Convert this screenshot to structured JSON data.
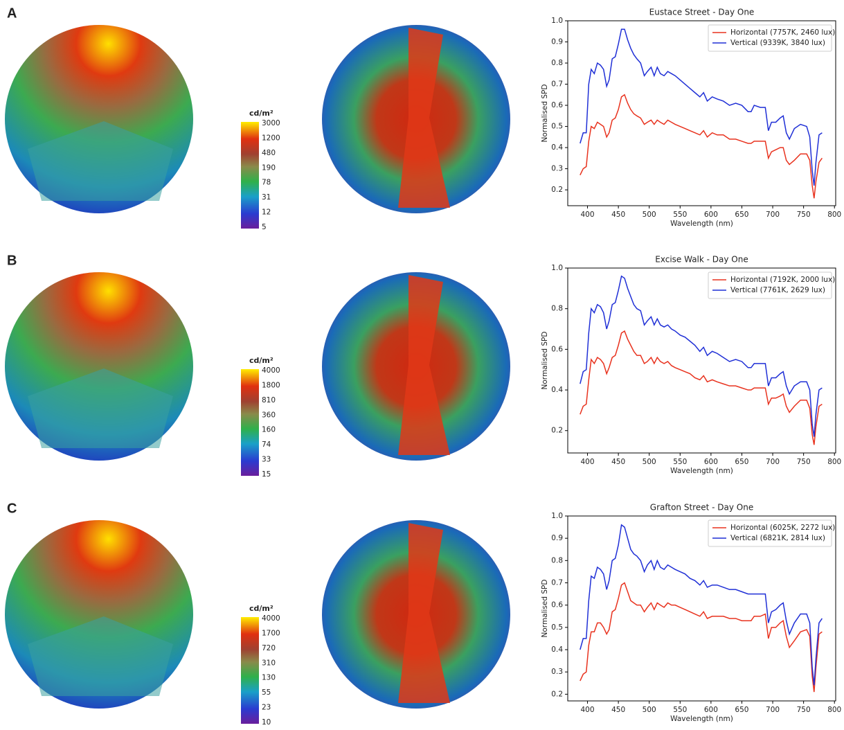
{
  "panels": [
    {
      "label": "A",
      "colorbar": {
        "unit": "cd/m²",
        "ticks": [
          3000,
          1200,
          480,
          190,
          78,
          31,
          12,
          5
        ]
      }
    },
    {
      "label": "B",
      "colorbar": {
        "unit": "cd/m²",
        "ticks": [
          4000,
          1800,
          810,
          360,
          160,
          74,
          33,
          15
        ]
      }
    },
    {
      "label": "C",
      "colorbar": {
        "unit": "cd/m²",
        "ticks": [
          4000,
          1700,
          720,
          310,
          130,
          55,
          23,
          10
        ]
      }
    }
  ],
  "chart_data": [
    {
      "type": "line",
      "title": "Eustace Street - Day One",
      "x_label": "Wavelength (nm)",
      "y_label": "Normalised SPD",
      "x": [
        388,
        393,
        398,
        402,
        406,
        411,
        416,
        421,
        426,
        431,
        435,
        440,
        445,
        450,
        455,
        460,
        465,
        470,
        475,
        480,
        486,
        492,
        497,
        503,
        508,
        513,
        518,
        524,
        530,
        536,
        542,
        550,
        558,
        566,
        574,
        582,
        588,
        594,
        602,
        610,
        620,
        630,
        640,
        650,
        660,
        665,
        670,
        680,
        688,
        693,
        698,
        705,
        712,
        717,
        722,
        727,
        735,
        745,
        755,
        760,
        764,
        767,
        770,
        775,
        780
      ],
      "xlim": [
        368,
        802
      ],
      "xticks": [
        400,
        450,
        500,
        550,
        600,
        650,
        700,
        750,
        800
      ],
      "ylim": [
        0.125,
        1.0
      ],
      "yticks": [
        0.2,
        0.3,
        0.4,
        0.5,
        0.6,
        0.7,
        0.8,
        0.9,
        {
          "value": 1,
          "label": "1.0"
        }
      ],
      "legend": "upper right",
      "series": [
        {
          "name": "Horizontal (7757K, 2460 lux)",
          "color": "#e8321e",
          "values": [
            0.27,
            0.3,
            0.31,
            0.43,
            0.5,
            0.49,
            0.52,
            0.51,
            0.5,
            0.45,
            0.47,
            0.53,
            0.54,
            0.58,
            0.64,
            0.65,
            0.61,
            0.58,
            0.56,
            0.55,
            0.54,
            0.51,
            0.52,
            0.53,
            0.51,
            0.53,
            0.52,
            0.51,
            0.53,
            0.52,
            0.51,
            0.5,
            0.49,
            0.48,
            0.47,
            0.46,
            0.48,
            0.45,
            0.47,
            0.46,
            0.46,
            0.44,
            0.44,
            0.43,
            0.42,
            0.42,
            0.43,
            0.43,
            0.43,
            0.35,
            0.38,
            0.39,
            0.4,
            0.4,
            0.34,
            0.32,
            0.34,
            0.37,
            0.37,
            0.34,
            0.22,
            0.16,
            0.24,
            0.33,
            0.35
          ]
        },
        {
          "name": "Vertical (9339K, 3840 lux)",
          "color": "#1f2fd6",
          "values": [
            0.42,
            0.47,
            0.47,
            0.7,
            0.77,
            0.75,
            0.8,
            0.79,
            0.77,
            0.69,
            0.72,
            0.82,
            0.83,
            0.89,
            0.96,
            0.96,
            0.91,
            0.87,
            0.84,
            0.82,
            0.8,
            0.74,
            0.76,
            0.78,
            0.74,
            0.78,
            0.75,
            0.74,
            0.76,
            0.75,
            0.74,
            0.72,
            0.7,
            0.68,
            0.66,
            0.64,
            0.66,
            0.62,
            0.64,
            0.63,
            0.62,
            0.6,
            0.61,
            0.6,
            0.57,
            0.57,
            0.6,
            0.59,
            0.59,
            0.48,
            0.52,
            0.52,
            0.54,
            0.55,
            0.47,
            0.44,
            0.49,
            0.51,
            0.5,
            0.45,
            0.29,
            0.22,
            0.33,
            0.46,
            0.47
          ]
        }
      ]
    },
    {
      "type": "line",
      "title": "Excise Walk - Day One",
      "x_label": "Wavelength (nm)",
      "y_label": "Normalised SPD",
      "x": [
        388,
        393,
        398,
        402,
        406,
        411,
        416,
        421,
        426,
        431,
        435,
        440,
        445,
        450,
        455,
        460,
        465,
        470,
        475,
        480,
        486,
        492,
        497,
        503,
        508,
        513,
        518,
        524,
        530,
        536,
        542,
        550,
        558,
        566,
        574,
        582,
        588,
        594,
        602,
        610,
        620,
        630,
        640,
        650,
        660,
        665,
        670,
        680,
        688,
        693,
        698,
        705,
        712,
        717,
        722,
        727,
        735,
        745,
        755,
        760,
        764,
        767,
        770,
        775,
        780
      ],
      "xlim": [
        368,
        802
      ],
      "xticks": [
        400,
        450,
        500,
        550,
        600,
        650,
        700,
        750,
        800
      ],
      "ylim": [
        0.09,
        1.0
      ],
      "yticks": [
        0.2,
        0.4,
        0.6,
        0.8,
        {
          "value": 1,
          "label": "1.0"
        }
      ],
      "legend": "upper right",
      "series": [
        {
          "name": "Horizontal (7192K, 2000 lux)",
          "color": "#e8321e",
          "values": [
            0.28,
            0.32,
            0.33,
            0.45,
            0.55,
            0.53,
            0.56,
            0.55,
            0.53,
            0.48,
            0.51,
            0.56,
            0.57,
            0.62,
            0.68,
            0.69,
            0.65,
            0.62,
            0.59,
            0.57,
            0.57,
            0.53,
            0.54,
            0.56,
            0.53,
            0.56,
            0.54,
            0.53,
            0.54,
            0.52,
            0.51,
            0.5,
            0.49,
            0.48,
            0.46,
            0.45,
            0.47,
            0.44,
            0.45,
            0.44,
            0.43,
            0.42,
            0.42,
            0.41,
            0.4,
            0.4,
            0.41,
            0.41,
            0.41,
            0.33,
            0.36,
            0.36,
            0.37,
            0.38,
            0.32,
            0.29,
            0.32,
            0.35,
            0.35,
            0.31,
            0.18,
            0.13,
            0.22,
            0.32,
            0.33
          ]
        },
        {
          "name": "Vertical (7761K, 2629 lux)",
          "color": "#1f2fd6",
          "values": [
            0.43,
            0.49,
            0.5,
            0.68,
            0.8,
            0.78,
            0.82,
            0.81,
            0.78,
            0.7,
            0.74,
            0.82,
            0.83,
            0.89,
            0.96,
            0.95,
            0.9,
            0.86,
            0.82,
            0.8,
            0.79,
            0.72,
            0.74,
            0.76,
            0.72,
            0.75,
            0.72,
            0.71,
            0.72,
            0.7,
            0.69,
            0.67,
            0.66,
            0.64,
            0.62,
            0.59,
            0.61,
            0.57,
            0.59,
            0.58,
            0.56,
            0.54,
            0.55,
            0.54,
            0.51,
            0.51,
            0.53,
            0.53,
            0.53,
            0.42,
            0.46,
            0.46,
            0.48,
            0.49,
            0.42,
            0.38,
            0.42,
            0.44,
            0.44,
            0.4,
            0.23,
            0.17,
            0.28,
            0.4,
            0.41
          ]
        }
      ]
    },
    {
      "type": "line",
      "title": "Grafton Street - Day One",
      "x_label": "Wavelength (nm)",
      "y_label": "Normalised SPD",
      "x": [
        388,
        393,
        398,
        402,
        406,
        411,
        416,
        421,
        426,
        431,
        435,
        440,
        445,
        450,
        455,
        460,
        465,
        470,
        475,
        480,
        486,
        492,
        497,
        503,
        508,
        513,
        518,
        524,
        530,
        536,
        542,
        550,
        558,
        566,
        574,
        582,
        588,
        594,
        602,
        610,
        620,
        630,
        640,
        650,
        660,
        665,
        670,
        680,
        688,
        693,
        698,
        705,
        712,
        717,
        722,
        727,
        735,
        745,
        755,
        760,
        764,
        767,
        770,
        775,
        780
      ],
      "xlim": [
        368,
        802
      ],
      "xticks": [
        400,
        450,
        500,
        550,
        600,
        650,
        700,
        750,
        800
      ],
      "ylim": [
        0.17,
        1.0
      ],
      "yticks": [
        0.2,
        0.3,
        0.4,
        0.5,
        0.6,
        0.7,
        0.8,
        0.9,
        {
          "value": 1,
          "label": "1.0"
        }
      ],
      "legend": "upper right",
      "series": [
        {
          "name": "Horizontal (6025K, 2272 lux)",
          "color": "#e8321e",
          "values": [
            0.26,
            0.29,
            0.3,
            0.42,
            0.48,
            0.48,
            0.52,
            0.52,
            0.5,
            0.47,
            0.49,
            0.57,
            0.58,
            0.63,
            0.69,
            0.7,
            0.66,
            0.62,
            0.61,
            0.6,
            0.6,
            0.57,
            0.59,
            0.61,
            0.58,
            0.61,
            0.6,
            0.59,
            0.61,
            0.6,
            0.6,
            0.59,
            0.58,
            0.57,
            0.56,
            0.55,
            0.57,
            0.54,
            0.55,
            0.55,
            0.55,
            0.54,
            0.54,
            0.53,
            0.53,
            0.53,
            0.55,
            0.55,
            0.56,
            0.45,
            0.5,
            0.5,
            0.52,
            0.53,
            0.46,
            0.41,
            0.44,
            0.48,
            0.49,
            0.46,
            0.28,
            0.21,
            0.32,
            0.47,
            0.48
          ]
        },
        {
          "name": "Vertical (6821K, 2814 lux)",
          "color": "#1f2fd6",
          "values": [
            0.4,
            0.45,
            0.45,
            0.62,
            0.73,
            0.72,
            0.77,
            0.76,
            0.74,
            0.67,
            0.71,
            0.8,
            0.81,
            0.87,
            0.96,
            0.95,
            0.9,
            0.85,
            0.83,
            0.82,
            0.8,
            0.75,
            0.78,
            0.8,
            0.76,
            0.8,
            0.77,
            0.76,
            0.78,
            0.77,
            0.76,
            0.75,
            0.74,
            0.72,
            0.71,
            0.69,
            0.71,
            0.68,
            0.69,
            0.69,
            0.68,
            0.67,
            0.67,
            0.66,
            0.65,
            0.65,
            0.65,
            0.65,
            0.65,
            0.52,
            0.57,
            0.58,
            0.6,
            0.61,
            0.53,
            0.47,
            0.52,
            0.56,
            0.56,
            0.52,
            0.32,
            0.24,
            0.36,
            0.52,
            0.54
          ]
        }
      ]
    }
  ]
}
